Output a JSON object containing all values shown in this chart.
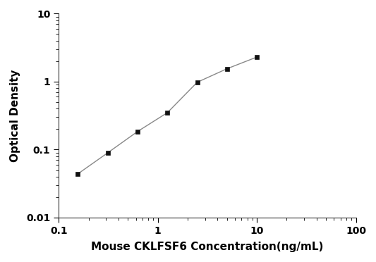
{
  "x": [
    0.156,
    0.313,
    0.625,
    1.25,
    2.5,
    5.0,
    10.0
  ],
  "y": [
    0.044,
    0.09,
    0.185,
    0.35,
    0.98,
    1.55,
    2.3
  ],
  "xlabel": "Mouse CKLFSF6 Concentration(ng/mL)",
  "ylabel": "Optical Density",
  "xlim": [
    0.1,
    100
  ],
  "ylim": [
    0.01,
    10
  ],
  "xtick_vals": [
    0.1,
    1,
    10,
    100
  ],
  "xtick_labels": [
    "0.1",
    "1",
    "10",
    "100"
  ],
  "ytick_vals": [
    0.01,
    0.1,
    1,
    10
  ],
  "ytick_labels": [
    "0.01",
    "0.1",
    "1",
    "10"
  ],
  "line_color": "#888888",
  "marker_color": "#111111",
  "marker": "s",
  "marker_size": 5,
  "line_width": 1.0,
  "background_color": "#ffffff",
  "label_fontsize": 11,
  "tick_fontsize": 10
}
